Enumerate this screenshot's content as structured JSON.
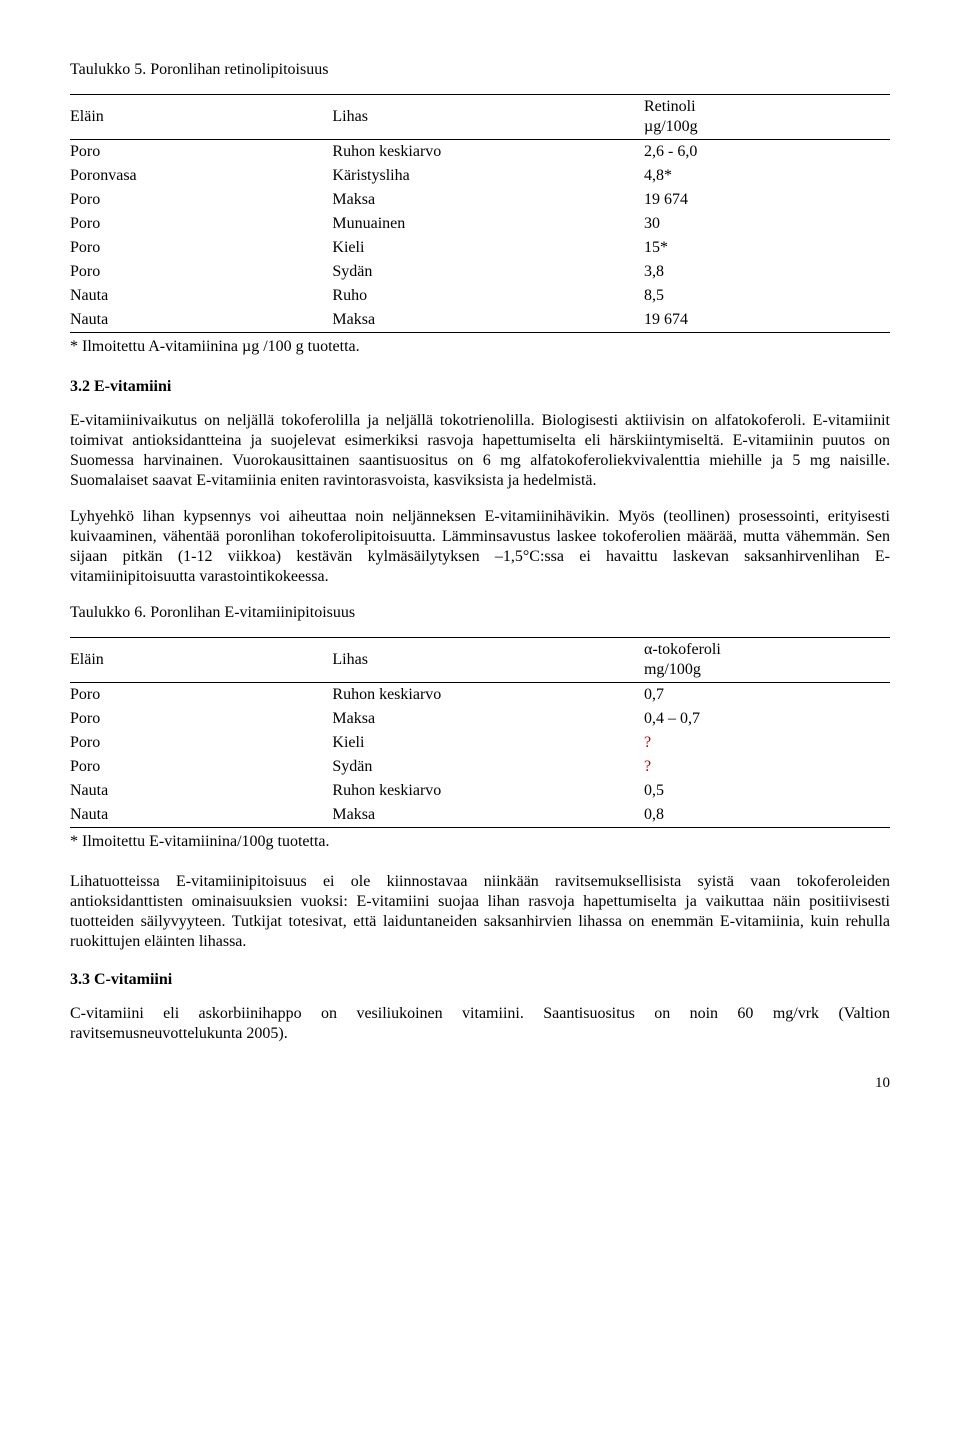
{
  "table5": {
    "title": "Taulukko 5. Poronlihan retinolipitoisuus",
    "head": {
      "c0": "Eläin",
      "c1": "Lihas",
      "c2": "Retinoli",
      "unit": "µg/100g"
    },
    "rows": [
      {
        "c0": "Poro",
        "c1": "Ruhon keskiarvo",
        "c2": "2,6 - 6,0"
      },
      {
        "c0": "Poronvasa",
        "c1": "Käristysliha",
        "c2": "4,8*"
      },
      {
        "c0": "Poro",
        "c1": "Maksa",
        "c2": "19 674"
      },
      {
        "c0": "Poro",
        "c1": "Munuainen",
        "c2": "30"
      },
      {
        "c0": "Poro",
        "c1": "Kieli",
        "c2": "15*"
      },
      {
        "c0": "Poro",
        "c1": "Sydän",
        "c2": "3,8"
      },
      {
        "c0": "Nauta",
        "c1": "Ruho",
        "c2": "8,5"
      },
      {
        "c0": "Nauta",
        "c1": "Maksa",
        "c2": "19 674"
      }
    ],
    "footnote": "* Ilmoitettu A-vitamiinina µg /100 g tuotetta."
  },
  "sec32": {
    "heading": "3.2 E-vitamiini",
    "p1": "E-vitamiinivaikutus on neljällä tokoferolilla ja neljällä tokotrienolilla. Biologisesti aktiivisin on alfatokoferoli. E-vitamiinit toimivat antioksidantteina ja suojelevat esimerkiksi rasvoja hapettumiselta eli härskiintymiseltä. E-vitamiinin puutos on Suomessa harvinainen. Vuorokausittainen saantisuositus on 6 mg alfatokoferoliekvivalenttia miehille ja 5 mg naisille. Suomalaiset saavat E-vitamiinia eniten ravintorasvoista, kasviksista ja hedelmistä.",
    "p2": "Lyhyehkö lihan kypsennys voi aiheuttaa noin neljänneksen E-vitamiinihävikin. Myös (teollinen) prosessointi, erityisesti kuivaaminen, vähentää poronlihan tokoferolipitoisuutta. Lämminsavustus laskee tokoferolien määrää, mutta vähemmän. Sen sijaan pitkän (1-12 viikkoa) kestävän kylmäsäilytyksen –1,5°C:ssa ei havaittu laskevan saksanhirvenlihan E-vitamiinipitoisuutta varastointikokeessa."
  },
  "table6": {
    "title": "Taulukko 6. Poronlihan E-vitamiinipitoisuus",
    "head": {
      "c0": "Eläin",
      "c1": "Lihas",
      "c2": "α-tokoferoli",
      "unit": "mg/100g"
    },
    "rows": [
      {
        "c0": "Poro",
        "c1": "Ruhon keskiarvo",
        "c2": "0,7",
        "q": false
      },
      {
        "c0": "Poro",
        "c1": "Maksa",
        "c2": "0,4 – 0,7",
        "q": false
      },
      {
        "c0": "Poro",
        "c1": "Kieli",
        "c2": "?",
        "q": true
      },
      {
        "c0": "Poro",
        "c1": "Sydän",
        "c2": "?",
        "q": true
      },
      {
        "c0": "Nauta",
        "c1": "Ruhon keskiarvo",
        "c2": "0,5",
        "q": false
      },
      {
        "c0": "Nauta",
        "c1": "Maksa",
        "c2": "0,8",
        "q": false
      }
    ],
    "footnote": "* Ilmoitettu E-vitamiinina/100g tuotetta."
  },
  "afterTable6": "Lihatuotteissa E-vitamiinipitoisuus ei ole kiinnostavaa niinkään ravitsemuksellisista syistä vaan tokoferoleiden antioksidanttisten ominaisuuksien vuoksi: E-vitamiini suojaa lihan rasvoja hapettumiselta ja vaikuttaa näin positiivisesti tuotteiden säilyvyyteen. Tutkijat totesivat, että laiduntaneiden saksanhirvien lihassa on enemmän E-vitamiinia, kuin rehulla ruokittujen eläinten lihassa.",
  "sec33": {
    "heading": "3.3 C-vitamiini",
    "p1": "C-vitamiini eli askorbiinihappo on vesiliukoinen vitamiini. Saantisuositus on noin 60 mg/vrk (Valtion ravitsemusneuvottelukunta 2005)."
  },
  "pagenum": "10"
}
